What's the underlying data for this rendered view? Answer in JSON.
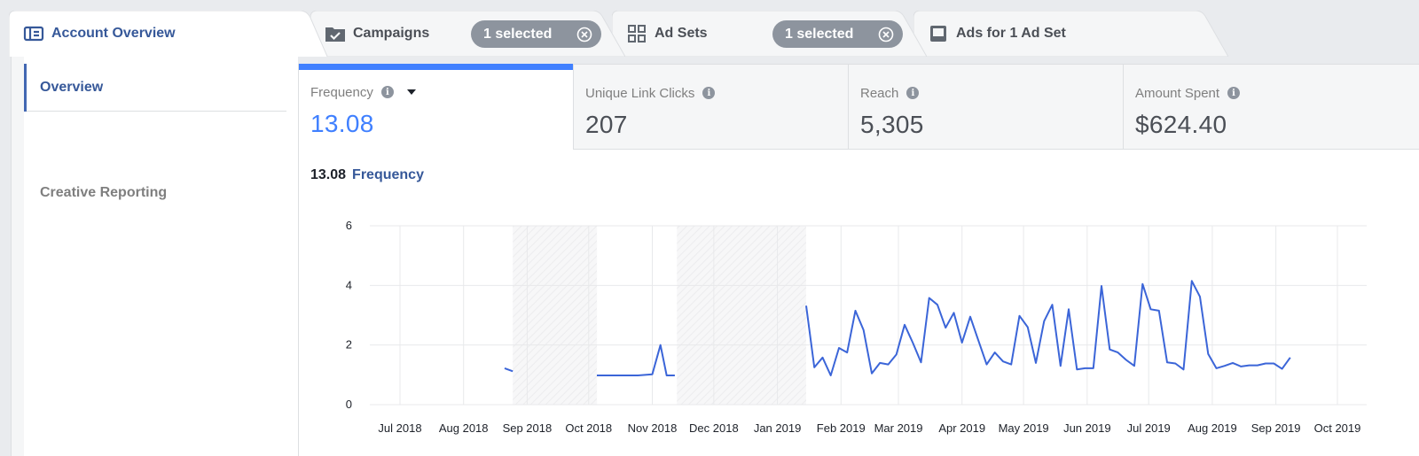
{
  "tabs": [
    {
      "label": "Account Overview",
      "icon": "account-overview-icon",
      "active": true
    },
    {
      "label": "Campaigns",
      "icon": "folder-check-icon",
      "pill": "1 selected"
    },
    {
      "label": "Ad Sets",
      "icon": "grid-icon",
      "pill": "1 selected"
    },
    {
      "label": "Ads for 1 Ad Set",
      "icon": "ad-icon"
    }
  ],
  "sidebar": {
    "items": [
      {
        "label": "Overview",
        "active": true
      },
      {
        "label": "Creative Reporting",
        "active": false
      }
    ]
  },
  "metrics": [
    {
      "label": "Frequency",
      "value": "13.08",
      "active": true
    },
    {
      "label": "Unique Link Clicks",
      "value": "207"
    },
    {
      "label": "Reach",
      "value": "5,305"
    },
    {
      "label": "Amount Spent",
      "value": "$624.40"
    }
  ],
  "chart_header": {
    "value": "13.08",
    "name": "Frequency"
  },
  "colors": {
    "accent": "#4080ff",
    "line": "#3b65d8",
    "brand": "#365899"
  },
  "chart_data": {
    "type": "line",
    "ylim": [
      0,
      6
    ],
    "yticks": [
      0,
      2,
      4,
      6
    ],
    "xticks": [
      "Jul 2018",
      "Aug 2018",
      "Sep 2018",
      "Oct 2018",
      "Nov 2018",
      "Dec 2018",
      "Jan 2019",
      "Feb 2019",
      "Mar 2019",
      "Apr 2019",
      "May 2019",
      "Jun 2019",
      "Jul 2019",
      "Aug 2019",
      "Sep 2019",
      "Oct 2019"
    ],
    "grid": true,
    "shaded_ranges": [
      [
        "2018-08-25",
        "2018-10-05"
      ],
      [
        "2018-11-13",
        "2019-01-15"
      ]
    ],
    "series": [
      {
        "segments": [
          [
            [
              "2018-08-21",
              1.22
            ],
            [
              "2018-08-25",
              1.12
            ]
          ],
          [
            [
              "2018-10-05",
              0.98
            ],
            [
              "2018-10-20",
              0.98
            ],
            [
              "2018-10-25",
              0.98
            ],
            [
              "2018-11-01",
              1.02
            ],
            [
              "2018-11-05",
              2.0
            ],
            [
              "2018-11-08",
              0.98
            ],
            [
              "2018-11-12",
              0.98
            ]
          ],
          [
            [
              "2019-01-15",
              3.32
            ],
            [
              "2019-01-19",
              1.25
            ],
            [
              "2019-01-23",
              1.58
            ],
            [
              "2019-01-27",
              0.98
            ],
            [
              "2019-01-31",
              1.9
            ],
            [
              "2019-02-04",
              1.75
            ],
            [
              "2019-02-08",
              3.15
            ],
            [
              "2019-02-12",
              2.5
            ],
            [
              "2019-02-16",
              1.05
            ],
            [
              "2019-02-20",
              1.4
            ],
            [
              "2019-02-24",
              1.35
            ],
            [
              "2019-02-28",
              1.68
            ],
            [
              "2019-03-04",
              2.68
            ],
            [
              "2019-03-08",
              2.08
            ],
            [
              "2019-03-12",
              1.42
            ],
            [
              "2019-03-16",
              3.58
            ],
            [
              "2019-03-20",
              3.35
            ],
            [
              "2019-03-24",
              2.58
            ],
            [
              "2019-03-28",
              3.08
            ],
            [
              "2019-04-01",
              2.08
            ],
            [
              "2019-04-05",
              2.95
            ],
            [
              "2019-04-09",
              2.15
            ],
            [
              "2019-04-13",
              1.35
            ],
            [
              "2019-04-17",
              1.75
            ],
            [
              "2019-04-21",
              1.45
            ],
            [
              "2019-04-25",
              1.35
            ],
            [
              "2019-04-29",
              2.98
            ],
            [
              "2019-05-03",
              2.6
            ],
            [
              "2019-05-07",
              1.4
            ],
            [
              "2019-05-11",
              2.8
            ],
            [
              "2019-05-15",
              3.35
            ],
            [
              "2019-05-19",
              1.3
            ],
            [
              "2019-05-23",
              3.2
            ],
            [
              "2019-05-27",
              1.18
            ],
            [
              "2019-05-31",
              1.22
            ],
            [
              "2019-06-04",
              1.22
            ],
            [
              "2019-06-08",
              3.98
            ],
            [
              "2019-06-12",
              1.85
            ],
            [
              "2019-06-16",
              1.75
            ],
            [
              "2019-06-20",
              1.5
            ],
            [
              "2019-06-24",
              1.3
            ],
            [
              "2019-06-28",
              4.05
            ],
            [
              "2019-07-02",
              3.2
            ],
            [
              "2019-07-06",
              3.15
            ],
            [
              "2019-07-10",
              1.42
            ],
            [
              "2019-07-14",
              1.38
            ],
            [
              "2019-07-18",
              1.18
            ],
            [
              "2019-07-22",
              4.15
            ],
            [
              "2019-07-26",
              3.62
            ],
            [
              "2019-07-30",
              1.7
            ],
            [
              "2019-08-03",
              1.22
            ],
            [
              "2019-08-07",
              1.3
            ],
            [
              "2019-08-11",
              1.4
            ],
            [
              "2019-08-15",
              1.28
            ],
            [
              "2019-08-19",
              1.32
            ],
            [
              "2019-08-23",
              1.32
            ],
            [
              "2019-08-27",
              1.38
            ],
            [
              "2019-08-31",
              1.38
            ],
            [
              "2019-09-04",
              1.2
            ],
            [
              "2019-09-08",
              1.58
            ]
          ]
        ]
      }
    ]
  }
}
